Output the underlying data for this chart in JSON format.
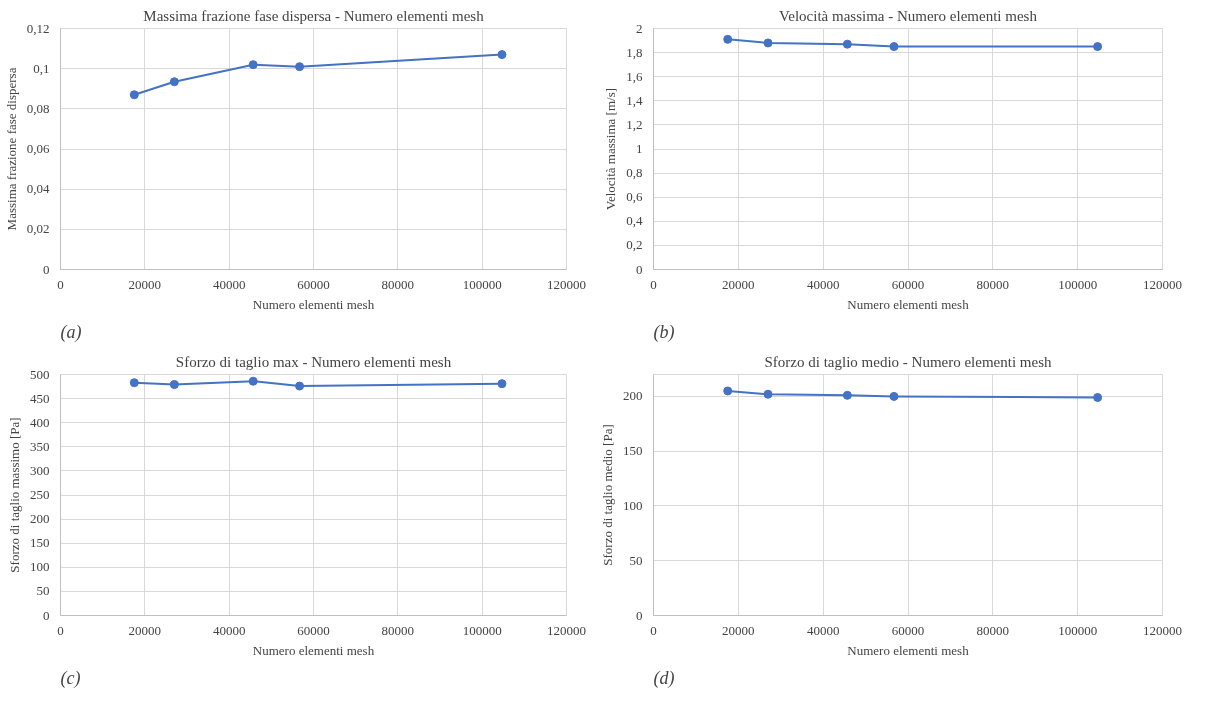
{
  "chart_data": [
    {
      "type": "line",
      "title": "Massima frazione fase dispersa - Numero elementi mesh",
      "xlabel": "Numero elementi mesh",
      "ylabel": "Massima frazione fase dispersa",
      "annotations": [
        "(a)"
      ],
      "x": [
        17500,
        27000,
        45700,
        56700,
        104700
      ],
      "series": [
        {
          "color": "#4472c4",
          "values": [
            0.087,
            0.0935,
            0.102,
            0.101,
            0.107
          ]
        }
      ],
      "xlim": [
        0,
        120000
      ],
      "xticks": [
        0,
        20000,
        40000,
        60000,
        80000,
        100000,
        120000
      ],
      "ylim": [
        0,
        0.12
      ],
      "yticks": [
        0,
        {
          "value": 0.02,
          "label": "0,02"
        },
        {
          "value": 0.04,
          "label": "0,04"
        },
        {
          "value": 0.06,
          "label": "0,06"
        },
        {
          "value": 0.08,
          "label": "0,08"
        },
        {
          "value": 0.1,
          "label": "0,1"
        },
        {
          "value": 0.12,
          "label": "0,12"
        }
      ],
      "grid": true,
      "marker": "circle",
      "line_style": "solid"
    },
    {
      "type": "line",
      "title": "Velocità massima - Numero elementi mesh",
      "xlabel": "Numero elementi mesh",
      "ylabel": "Velocità massima [m/s]",
      "annotations": [
        "(b)"
      ],
      "x": [
        17500,
        27000,
        45700,
        56700,
        104700
      ],
      "series": [
        {
          "color": "#4472c4",
          "values": [
            1.91,
            1.88,
            1.87,
            1.85,
            1.85
          ]
        }
      ],
      "xlim": [
        0,
        120000
      ],
      "xticks": [
        0,
        20000,
        40000,
        60000,
        80000,
        100000,
        120000
      ],
      "ylim": [
        0,
        2
      ],
      "yticks": [
        0,
        {
          "value": 0.2,
          "label": "0,2"
        },
        {
          "value": 0.4,
          "label": "0,4"
        },
        {
          "value": 0.6,
          "label": "0,6"
        },
        {
          "value": 0.8,
          "label": "0,8"
        },
        1,
        {
          "value": 1.2,
          "label": "1,2"
        },
        {
          "value": 1.4,
          "label": "1,4"
        },
        {
          "value": 1.6,
          "label": "1,6"
        },
        {
          "value": 1.8,
          "label": "1,8"
        },
        2
      ],
      "grid": true,
      "marker": "circle",
      "line_style": "solid"
    },
    {
      "type": "line",
      "title": "Sforzo di taglio max - Numero elementi mesh",
      "xlabel": "Numero elementi mesh",
      "ylabel": "Sforzo di taglio massimo [Pa]",
      "annotations": [
        "(c)"
      ],
      "x": [
        17500,
        27000,
        45700,
        56700,
        104700
      ],
      "series": [
        {
          "color": "#4472c4",
          "values": [
            483,
            479,
            486,
            476,
            481
          ]
        }
      ],
      "xlim": [
        0,
        120000
      ],
      "xticks": [
        0,
        20000,
        40000,
        60000,
        80000,
        100000,
        120000
      ],
      "ylim": [
        0,
        500
      ],
      "yticks": [
        0,
        50,
        100,
        150,
        200,
        250,
        300,
        350,
        400,
        450,
        500
      ],
      "grid": true,
      "marker": "circle",
      "line_style": "solid"
    },
    {
      "type": "line",
      "title": "Sforzo di taglio medio - Numero elementi mesh",
      "xlabel": "Numero elementi mesh",
      "ylabel": "Sforzo di taglio medio [Pa]",
      "annotations": [
        "(d)"
      ],
      "x": [
        17500,
        27000,
        45700,
        56700,
        104700
      ],
      "series": [
        {
          "color": "#4472c4",
          "values": [
            205,
            202,
            201,
            200,
            199
          ]
        }
      ],
      "xlim": [
        0,
        120000
      ],
      "xticks": [
        0,
        20000,
        40000,
        60000,
        80000,
        100000,
        120000
      ],
      "ylim": [
        0,
        220
      ],
      "yticks": [
        0,
        50,
        100,
        150,
        200
      ],
      "grid": true,
      "marker": "circle",
      "line_style": "solid"
    }
  ]
}
